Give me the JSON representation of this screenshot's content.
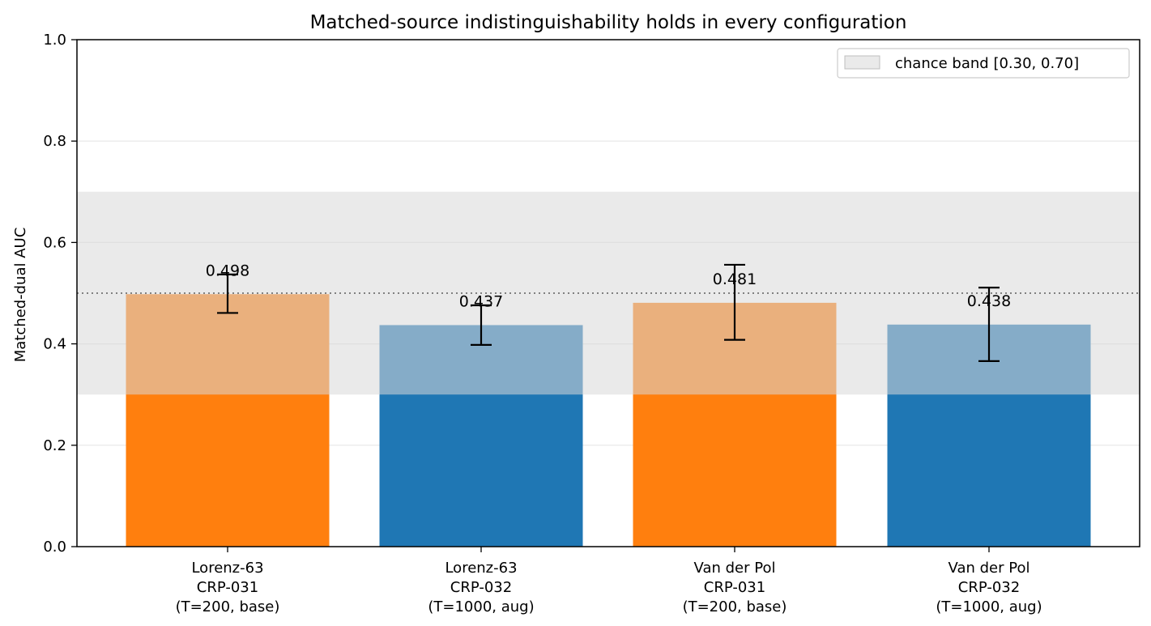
{
  "chart_data": {
    "type": "bar",
    "title": "Matched-source indistinguishability holds in every configuration",
    "xlabel": "",
    "ylabel": "Matched-dual AUC",
    "ylim": [
      0,
      1.0
    ],
    "yticks": [
      0.0,
      0.2,
      0.4,
      0.6,
      0.8,
      1.0
    ],
    "ytick_labels": [
      "0.0",
      "0.2",
      "0.4",
      "0.6",
      "0.8",
      "1.0"
    ],
    "grid": "y",
    "categories": [
      [
        "Lorenz-63",
        "CRP-031",
        "(T=200, base)"
      ],
      [
        "Lorenz-63",
        "CRP-032",
        "(T=1000, aug)"
      ],
      [
        "Van der Pol",
        "CRP-031",
        "(T=200, base)"
      ],
      [
        "Van der Pol",
        "CRP-032",
        "(T=1000, aug)"
      ]
    ],
    "values": [
      0.498,
      0.437,
      0.481,
      0.438
    ],
    "value_labels": [
      "0.498",
      "0.437",
      "0.481",
      "0.438"
    ],
    "error_low": [
      0.461,
      0.398,
      0.408,
      0.366
    ],
    "error_high": [
      0.537,
      0.476,
      0.556,
      0.511
    ],
    "bar_colors": [
      "#ff7f0e",
      "#1f77b4",
      "#ff7f0e",
      "#1f77b4"
    ],
    "reference_line": {
      "y": 0.5,
      "style": "dotted",
      "color": "#808080"
    },
    "band": {
      "from": 0.3,
      "to": 0.7,
      "color": "#d9d9d9"
    },
    "legend": {
      "placement": "top-right",
      "entries": [
        {
          "label": "chance band [0.30, 0.70]",
          "color": "#d9d9d9"
        }
      ]
    }
  }
}
